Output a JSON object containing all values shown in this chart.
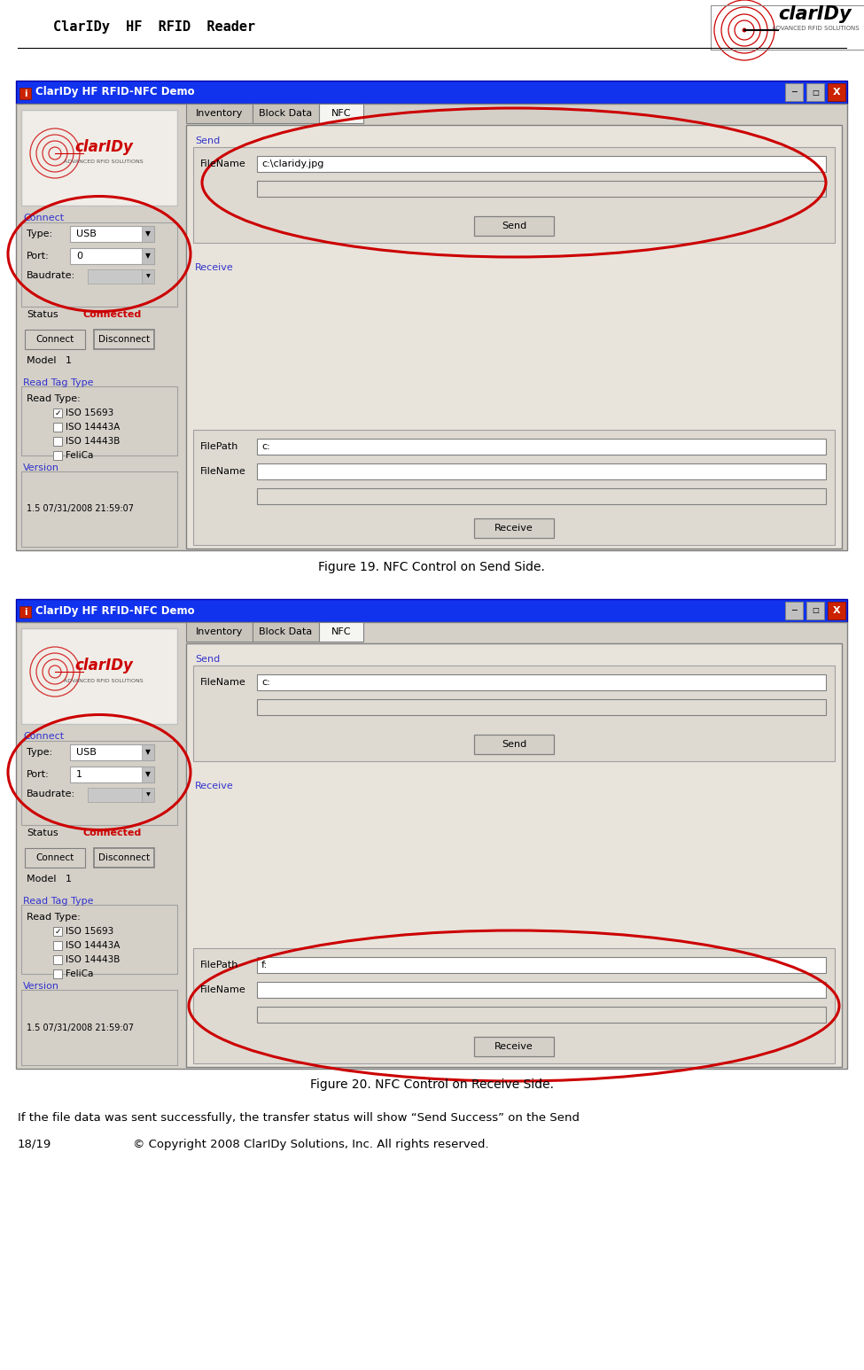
{
  "page_title": "ClarIDy  HF  RFID  Reader",
  "fig19_caption": "Figure 19. NFC Control on Send Side.",
  "fig20_caption": "Figure 20. NFC Control on Receive Side.",
  "bottom_text_line1": "If the file data was sent successfully, the transfer status will show “Send Success” on the Send",
  "page_number": "18/19",
  "copyright": "© Copyright 2008 ClarIDy Solutions, Inc. All rights reserved.",
  "bg_color": "#ffffff",
  "blue_label": "#3333cc",
  "red_text": "#cc0000",
  "titlebar_blue": "#1133ee",
  "win_bg": "#d4d0c8",
  "content_bg": "#e8e4dc",
  "panel_bg": "#d4d0c8",
  "field_bg": "#ffffff",
  "field_gray": "#e0dcd4",
  "btn_bg": "#d4d0c8",
  "tab_inactive": "#c8c4bc",
  "circle_color": "#cc0000",
  "win_title": "ClarIDy HF RFID-NFC Demo",
  "win1_port": "0",
  "win2_port": "1",
  "send1_filename": "c:\\claridy.jpg",
  "send2_filename": "c:",
  "recv1_filepath": "c:",
  "recv2_filepath": "f:"
}
